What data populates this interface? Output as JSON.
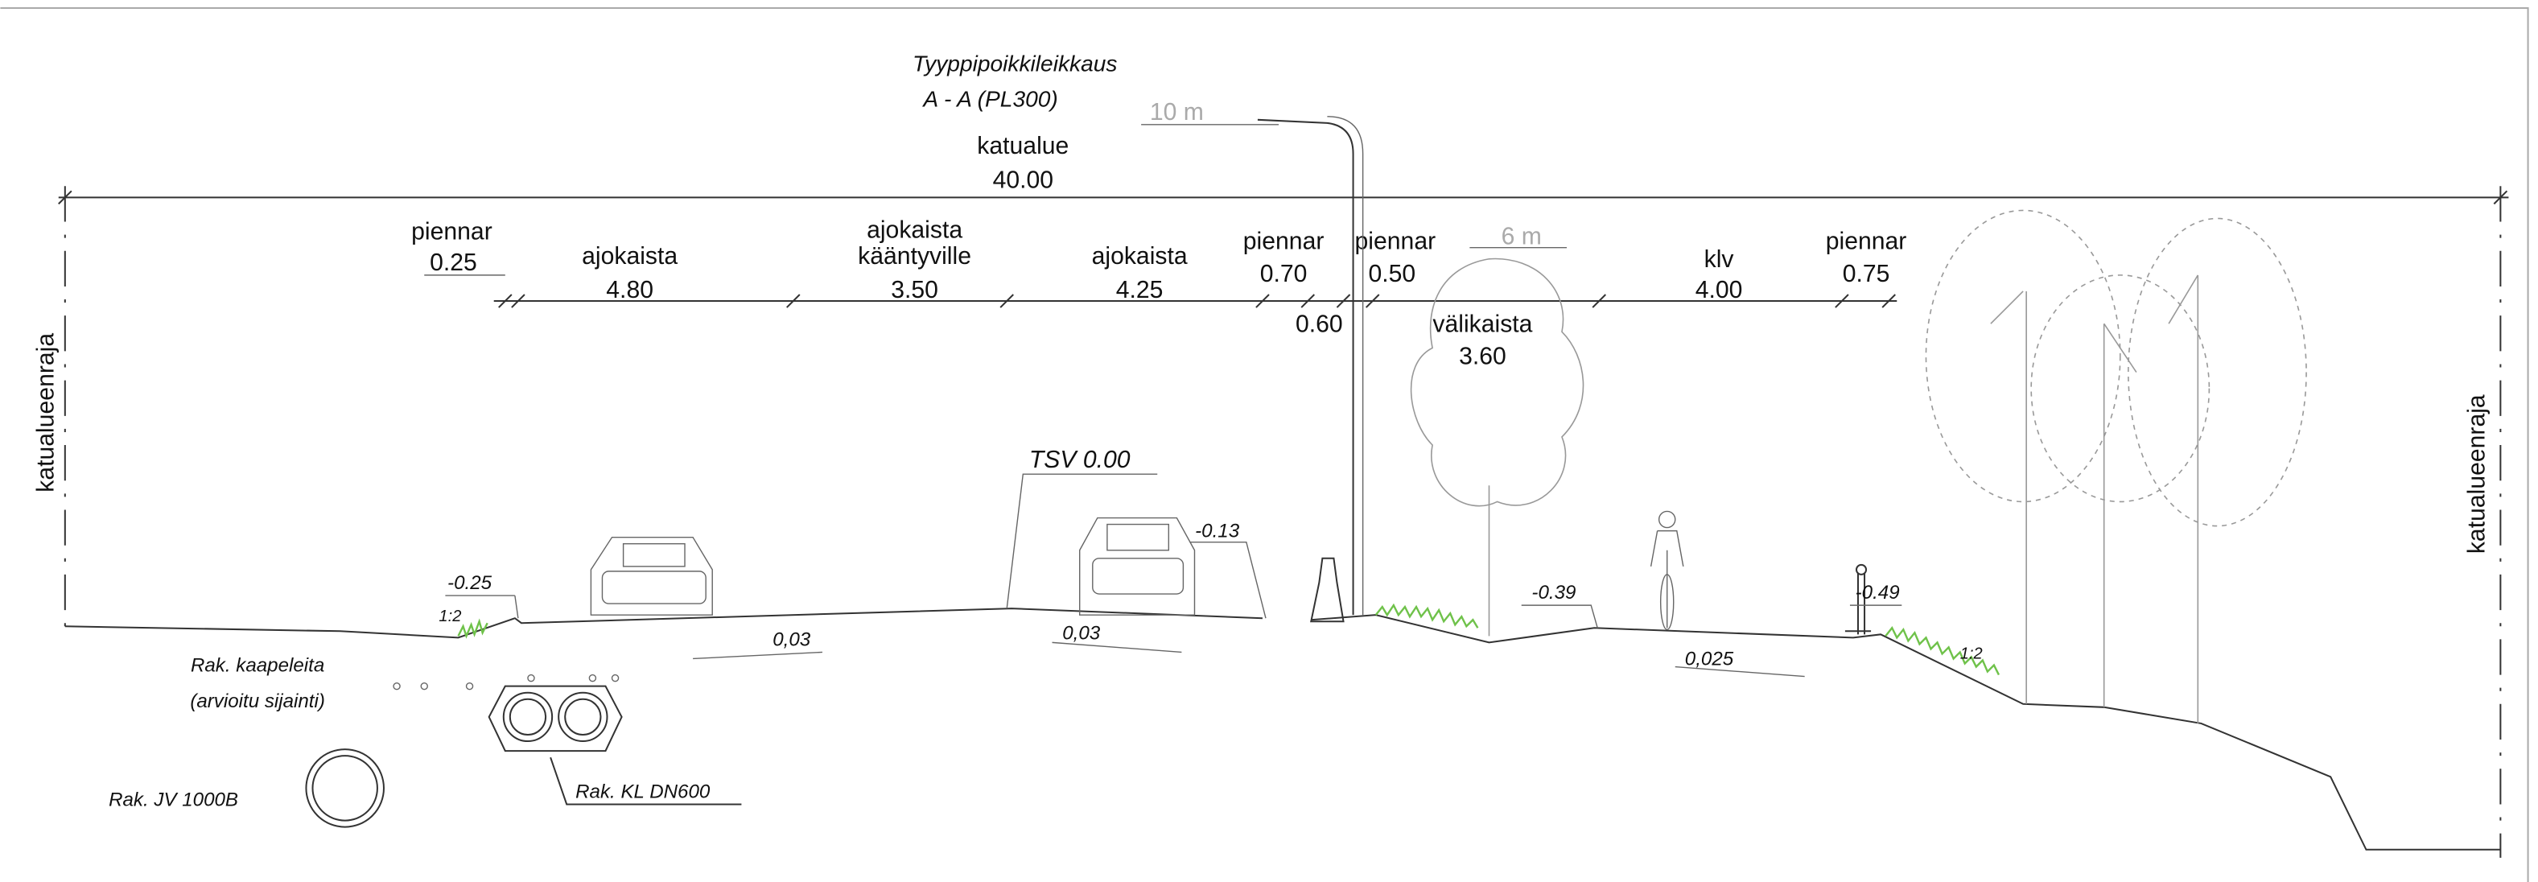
{
  "title": {
    "name": "Tyyppipoikkileikkaus",
    "section": "A - A  (PL300)"
  },
  "heights": {
    "pole": "10 m",
    "tree": "6 m"
  },
  "total": {
    "label": "katualue",
    "width": "40.00"
  },
  "boundary": {
    "left": "katualueenraja",
    "right": "katualueenraja"
  },
  "parts": [
    {
      "label": "piennar",
      "width": "0.25"
    },
    {
      "label": "ajokaista",
      "width": "4.80"
    },
    {
      "label": "ajokaista",
      "label2": "kääntyville",
      "width": "3.50"
    },
    {
      "label": "ajokaista",
      "width": "4.25"
    },
    {
      "label": "piennar",
      "width": "0.70"
    },
    {
      "width": "0.60"
    },
    {
      "label": "piennar",
      "width": "0.50"
    },
    {
      "label": "välikaista",
      "width": "3.60"
    },
    {
      "label": "klv",
      "width": "4.00"
    },
    {
      "label": "piennar",
      "width": "0.75"
    }
  ],
  "levels": [
    "-0.25",
    "TSV 0.00",
    "-0.13",
    "-0.39",
    "-0.49"
  ],
  "slopes": [
    "1:2",
    "0,03",
    "0,03",
    "0,025",
    "1:2"
  ],
  "utilities": {
    "cables": "Rak. kaapeleita",
    "cables_note": "(arvioitu sijainti)",
    "drain": "Rak. KL DN600",
    "water": "Rak. JV 1000B"
  }
}
